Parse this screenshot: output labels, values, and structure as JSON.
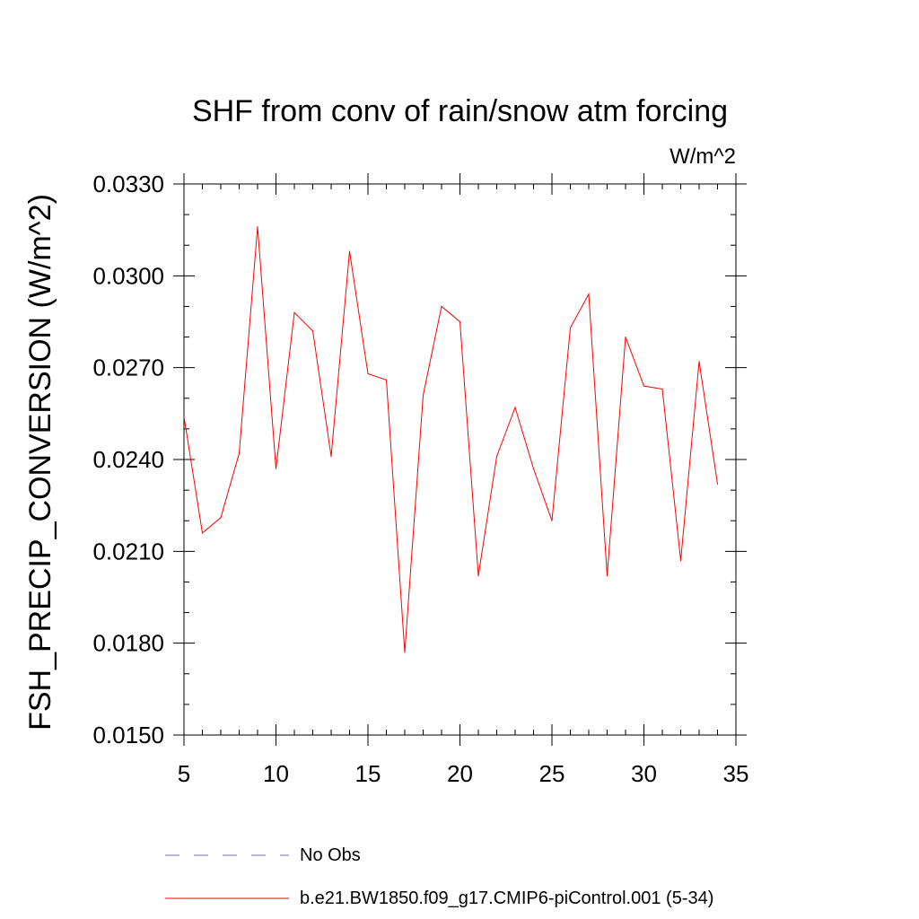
{
  "chart_data": {
    "type": "line",
    "title": "SHF from conv of rain/snow atm forcing",
    "units_label": "W/m^2",
    "xlabel": "",
    "ylabel": "FSH_PRECIP_CONVERSION  (W/m^2)",
    "xlim": [
      5,
      35
    ],
    "ylim": [
      0.015,
      0.033
    ],
    "x_ticks": [
      5,
      10,
      15,
      20,
      25,
      30,
      35
    ],
    "x_tick_labels": [
      "5",
      "10",
      "15",
      "20",
      "25",
      "30",
      "35"
    ],
    "y_ticks": [
      0.015,
      0.018,
      0.021,
      0.024,
      0.027,
      0.03,
      0.033
    ],
    "y_tick_labels": [
      "0.0150",
      "0.0180",
      "0.0210",
      "0.0240",
      "0.0270",
      "0.0300",
      "0.0330"
    ],
    "grid": false,
    "legend_position": "bottom",
    "series": [
      {
        "name": "b.e21.BW1850.f09_g17.CMIP6-piControl.001 (5-34)",
        "color": "#ff0000",
        "style": "solid",
        "x": [
          5,
          6,
          7,
          8,
          9,
          10,
          11,
          12,
          13,
          14,
          15,
          16,
          17,
          18,
          19,
          20,
          21,
          22,
          23,
          24,
          25,
          26,
          27,
          28,
          29,
          30,
          31,
          32,
          33,
          34
        ],
        "values": [
          0.0254,
          0.0216,
          0.0221,
          0.0242,
          0.0316,
          0.0237,
          0.0288,
          0.0282,
          0.0241,
          0.0308,
          0.0268,
          0.0266,
          0.0177,
          0.0261,
          0.029,
          0.0285,
          0.0202,
          0.0241,
          0.0257,
          0.0237,
          0.022,
          0.0283,
          0.0294,
          0.0202,
          0.028,
          0.0264,
          0.0263,
          0.0207,
          0.0272,
          0.0232
        ]
      }
    ],
    "legend": [
      {
        "label": "No Obs",
        "color": "#6b6bd6",
        "style": "dashed"
      },
      {
        "label": "b.e21.BW1850.f09_g17.CMIP6-piControl.001 (5-34)",
        "color": "#ff0000",
        "style": "solid"
      }
    ]
  }
}
